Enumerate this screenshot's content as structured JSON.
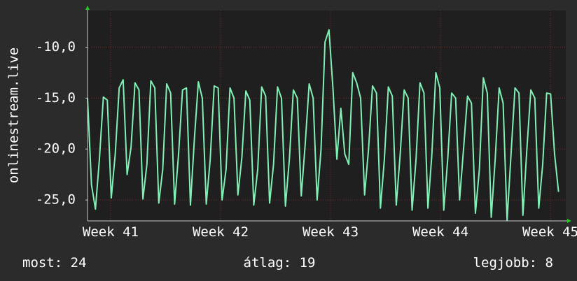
{
  "chart_data": {
    "type": "line",
    "y_label": "onlinestream.live",
    "annotations": [
      "most: 24",
      "átlag: 19",
      "legjobb: 8"
    ],
    "xlim": [
      40.79,
      45.14
    ],
    "xticks": [
      {
        "value": 41,
        "label": "Week 41"
      },
      {
        "value": 42,
        "label": "Week 42"
      },
      {
        "value": 43,
        "label": "Week 43"
      },
      {
        "value": 44,
        "label": "Week 44"
      },
      {
        "value": 45,
        "label": "Week 45"
      }
    ],
    "ylim": [
      -27.05,
      -6.4
    ],
    "yticks": [
      {
        "value": -25,
        "label": "-25,0"
      },
      {
        "value": -20,
        "label": "-20,0"
      },
      {
        "value": -15,
        "label": "-15,0"
      },
      {
        "value": -10,
        "label": "-10,0"
      }
    ],
    "grid": true,
    "x": [
      40.79,
      40.826,
      40.862,
      40.898,
      40.934,
      40.97,
      41.006,
      41.042,
      41.078,
      41.114,
      41.15,
      41.186,
      41.222,
      41.258,
      41.294,
      41.33,
      41.366,
      41.402,
      41.438,
      41.474,
      41.51,
      41.546,
      41.582,
      41.618,
      41.654,
      41.69,
      41.726,
      41.762,
      41.798,
      41.834,
      41.87,
      41.906,
      41.942,
      41.978,
      42.014,
      42.05,
      42.086,
      42.122,
      42.158,
      42.194,
      42.23,
      42.266,
      42.302,
      42.338,
      42.374,
      42.41,
      42.446,
      42.482,
      42.518,
      42.554,
      42.59,
      42.626,
      42.662,
      42.698,
      42.734,
      42.77,
      42.806,
      42.842,
      42.878,
      42.914,
      42.95,
      42.986,
      43.022,
      43.058,
      43.094,
      43.13,
      43.166,
      43.202,
      43.238,
      43.274,
      43.31,
      43.346,
      43.382,
      43.418,
      43.454,
      43.49,
      43.526,
      43.562,
      43.598,
      43.634,
      43.67,
      43.706,
      43.742,
      43.778,
      43.814,
      43.85,
      43.886,
      43.922,
      43.958,
      43.994,
      44.03,
      44.066,
      44.102,
      44.138,
      44.174,
      44.21,
      44.246,
      44.282,
      44.318,
      44.354,
      44.39,
      44.426,
      44.462,
      44.498,
      44.534,
      44.57,
      44.606,
      44.642,
      44.678,
      44.714,
      44.75,
      44.786,
      44.822,
      44.858,
      44.894,
      44.93,
      44.966,
      45.002,
      45.038,
      45.074
    ],
    "series": [
      {
        "color": "#80f0b4",
        "values": [
          -15.0,
          -23.5,
          -25.9,
          -21.0,
          -14.9,
          -15.2,
          -24.8,
          -20.5,
          -14.0,
          -13.2,
          -22.5,
          -19.8,
          -13.5,
          -14.2,
          -24.9,
          -21.5,
          -13.3,
          -14.0,
          -25.3,
          -22.0,
          -13.6,
          -14.5,
          -25.4,
          -20.5,
          -14.2,
          -14.0,
          -25.5,
          -19.0,
          -13.4,
          -15.0,
          -25.4,
          -21.0,
          -13.8,
          -14.0,
          -25.0,
          -22.0,
          -14.0,
          -15.0,
          -24.5,
          -20.8,
          -14.3,
          -15.2,
          -25.5,
          -22.0,
          -13.9,
          -14.8,
          -25.3,
          -21.5,
          -13.9,
          -15.0,
          -25.6,
          -21.0,
          -14.2,
          -15.0,
          -24.6,
          -19.5,
          -13.6,
          -15.0,
          -25.0,
          -20.0,
          -9.5,
          -8.3,
          -14.0,
          -21.0,
          -16.0,
          -20.5,
          -21.5,
          -12.5,
          -13.5,
          -15.0,
          -24.5,
          -20.0,
          -13.8,
          -14.5,
          -25.8,
          -21.0,
          -13.9,
          -14.8,
          -25.5,
          -20.5,
          -14.2,
          -15.0,
          -26.0,
          -21.0,
          -13.5,
          -14.5,
          -25.8,
          -20.5,
          -12.5,
          -14.0,
          -26.0,
          -21.0,
          -14.5,
          -15.0,
          -25.0,
          -20.0,
          -14.8,
          -15.5,
          -26.3,
          -22.0,
          -13.0,
          -14.5,
          -26.7,
          -21.0,
          -14.0,
          -15.5,
          -27.0,
          -20.5,
          -14.0,
          -14.5,
          -26.5,
          -20.0,
          -14.2,
          -15.0,
          -25.8,
          -21.5,
          -14.5,
          -14.6,
          -20.5,
          -24.2
        ]
      }
    ]
  }
}
